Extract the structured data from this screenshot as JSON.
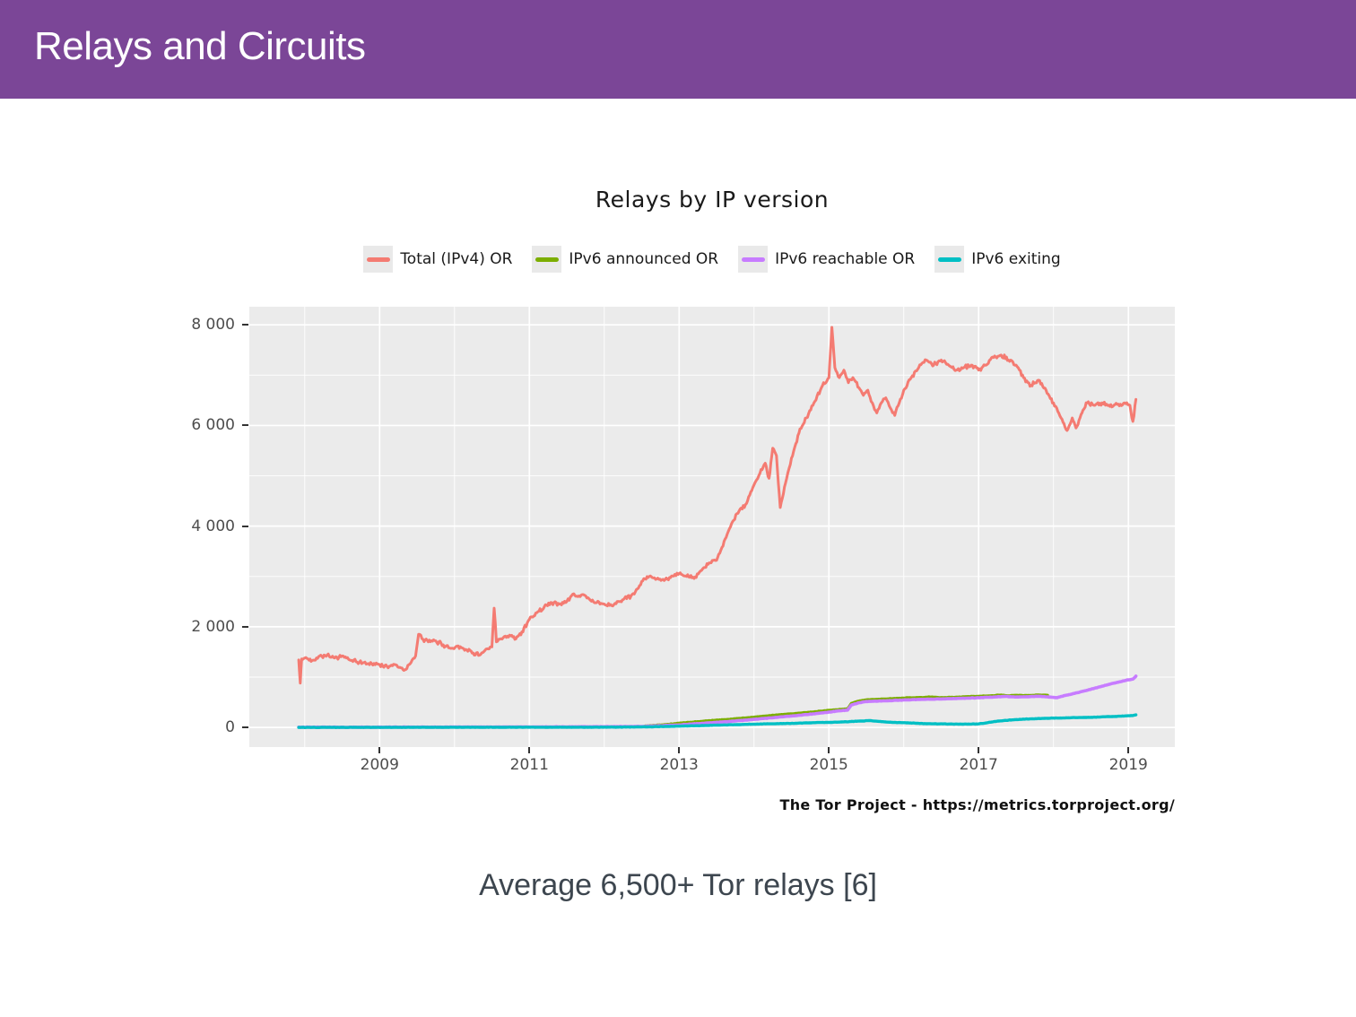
{
  "header": {
    "title": "Relays and Circuits"
  },
  "subtitle": "Average 6,500+ Tor relays [6]",
  "chart_data": {
    "type": "line",
    "title": "Relays by IP version",
    "caption": "The Tor Project - https://metrics.torproject.org/",
    "plot_bg": "#EBEBEB",
    "grid": "on",
    "legend_position": "top",
    "xlim": [
      2007.26,
      2019.62
    ],
    "ylim": [
      -390,
      8360
    ],
    "y_ticks": [
      {
        "label": "0",
        "value": 0
      },
      {
        "label": "2 000",
        "value": 2000
      },
      {
        "label": "4 000",
        "value": 4000
      },
      {
        "label": "6 000",
        "value": 6000
      },
      {
        "label": "8 000",
        "value": 8000
      }
    ],
    "y_minor": [
      1000,
      3000,
      5000,
      7000
    ],
    "x_ticks": [
      {
        "label": "2009",
        "value": 2009
      },
      {
        "label": "2011",
        "value": 2011
      },
      {
        "label": "2013",
        "value": 2013
      },
      {
        "label": "2015",
        "value": 2015
      },
      {
        "label": "2017",
        "value": 2017
      },
      {
        "label": "2019",
        "value": 2019
      }
    ],
    "x_minor": [
      2008,
      2010,
      2012,
      2014,
      2016,
      2018
    ],
    "series": [
      {
        "name": "Total (IPv4) OR",
        "color": "#F47B72",
        "width": 3.0,
        "noise": 48,
        "points": [
          [
            2007.92,
            1340
          ],
          [
            2007.94,
            880
          ],
          [
            2007.96,
            1360
          ],
          [
            2008.0,
            1380
          ],
          [
            2008.1,
            1330
          ],
          [
            2008.2,
            1420
          ],
          [
            2008.3,
            1440
          ],
          [
            2008.4,
            1380
          ],
          [
            2008.5,
            1420
          ],
          [
            2008.6,
            1340
          ],
          [
            2008.7,
            1300
          ],
          [
            2008.85,
            1270
          ],
          [
            2009.0,
            1250
          ],
          [
            2009.1,
            1210
          ],
          [
            2009.2,
            1250
          ],
          [
            2009.3,
            1180
          ],
          [
            2009.35,
            1150
          ],
          [
            2009.42,
            1290
          ],
          [
            2009.48,
            1420
          ],
          [
            2009.52,
            1850
          ],
          [
            2009.58,
            1750
          ],
          [
            2009.65,
            1700
          ],
          [
            2009.75,
            1720
          ],
          [
            2009.85,
            1640
          ],
          [
            2009.95,
            1570
          ],
          [
            2010.05,
            1620
          ],
          [
            2010.15,
            1550
          ],
          [
            2010.25,
            1480
          ],
          [
            2010.35,
            1450
          ],
          [
            2010.45,
            1560
          ],
          [
            2010.5,
            1600
          ],
          [
            2010.53,
            2370
          ],
          [
            2010.56,
            1700
          ],
          [
            2010.65,
            1780
          ],
          [
            2010.75,
            1820
          ],
          [
            2010.82,
            1760
          ],
          [
            2010.9,
            1900
          ],
          [
            2011.0,
            2150
          ],
          [
            2011.1,
            2280
          ],
          [
            2011.2,
            2400
          ],
          [
            2011.3,
            2480
          ],
          [
            2011.4,
            2450
          ],
          [
            2011.5,
            2500
          ],
          [
            2011.58,
            2650
          ],
          [
            2011.65,
            2600
          ],
          [
            2011.72,
            2640
          ],
          [
            2011.8,
            2550
          ],
          [
            2011.9,
            2480
          ],
          [
            2012.0,
            2450
          ],
          [
            2012.1,
            2420
          ],
          [
            2012.2,
            2500
          ],
          [
            2012.3,
            2560
          ],
          [
            2012.4,
            2650
          ],
          [
            2012.5,
            2900
          ],
          [
            2012.6,
            3000
          ],
          [
            2012.7,
            2950
          ],
          [
            2012.8,
            2920
          ],
          [
            2012.9,
            3010
          ],
          [
            2013.0,
            3060
          ],
          [
            2013.1,
            3000
          ],
          [
            2013.2,
            2960
          ],
          [
            2013.3,
            3120
          ],
          [
            2013.4,
            3270
          ],
          [
            2013.5,
            3320
          ],
          [
            2013.6,
            3700
          ],
          [
            2013.7,
            4050
          ],
          [
            2013.8,
            4300
          ],
          [
            2013.9,
            4450
          ],
          [
            2014.0,
            4820
          ],
          [
            2014.08,
            5050
          ],
          [
            2014.15,
            5250
          ],
          [
            2014.2,
            4950
          ],
          [
            2014.25,
            5550
          ],
          [
            2014.3,
            5400
          ],
          [
            2014.35,
            4370
          ],
          [
            2014.42,
            4850
          ],
          [
            2014.5,
            5350
          ],
          [
            2014.6,
            5850
          ],
          [
            2014.7,
            6150
          ],
          [
            2014.8,
            6450
          ],
          [
            2014.9,
            6750
          ],
          [
            2015.0,
            6950
          ],
          [
            2015.04,
            7950
          ],
          [
            2015.08,
            7150
          ],
          [
            2015.14,
            6950
          ],
          [
            2015.2,
            7100
          ],
          [
            2015.26,
            6850
          ],
          [
            2015.32,
            6950
          ],
          [
            2015.4,
            6750
          ],
          [
            2015.46,
            6600
          ],
          [
            2015.52,
            6700
          ],
          [
            2015.58,
            6450
          ],
          [
            2015.64,
            6250
          ],
          [
            2015.7,
            6450
          ],
          [
            2015.76,
            6550
          ],
          [
            2015.82,
            6350
          ],
          [
            2015.88,
            6200
          ],
          [
            2015.94,
            6450
          ],
          [
            2016.0,
            6700
          ],
          [
            2016.1,
            6950
          ],
          [
            2016.2,
            7150
          ],
          [
            2016.3,
            7300
          ],
          [
            2016.4,
            7200
          ],
          [
            2016.5,
            7300
          ],
          [
            2016.6,
            7200
          ],
          [
            2016.7,
            7100
          ],
          [
            2016.8,
            7150
          ],
          [
            2016.9,
            7200
          ],
          [
            2017.0,
            7100
          ],
          [
            2017.1,
            7200
          ],
          [
            2017.2,
            7350
          ],
          [
            2017.3,
            7400
          ],
          [
            2017.4,
            7300
          ],
          [
            2017.5,
            7200
          ],
          [
            2017.6,
            6950
          ],
          [
            2017.7,
            6800
          ],
          [
            2017.8,
            6900
          ],
          [
            2017.9,
            6700
          ],
          [
            2018.0,
            6450
          ],
          [
            2018.1,
            6150
          ],
          [
            2018.18,
            5900
          ],
          [
            2018.25,
            6150
          ],
          [
            2018.3,
            5950
          ],
          [
            2018.38,
            6250
          ],
          [
            2018.45,
            6450
          ],
          [
            2018.55,
            6400
          ],
          [
            2018.65,
            6450
          ],
          [
            2018.75,
            6380
          ],
          [
            2018.85,
            6420
          ],
          [
            2018.95,
            6450
          ],
          [
            2019.02,
            6400
          ],
          [
            2019.06,
            6080
          ],
          [
            2019.1,
            6520
          ]
        ]
      },
      {
        "name": "IPv6 announced OR",
        "color": "#7CAE00",
        "width": 3.2,
        "noise": 5,
        "points": [
          [
            2012.55,
            30
          ],
          [
            2012.8,
            55
          ],
          [
            2013.0,
            85
          ],
          [
            2013.2,
            110
          ],
          [
            2013.4,
            135
          ],
          [
            2013.6,
            155
          ],
          [
            2013.8,
            180
          ],
          [
            2014.0,
            205
          ],
          [
            2014.2,
            235
          ],
          [
            2014.4,
            260
          ],
          [
            2014.6,
            285
          ],
          [
            2014.8,
            310
          ],
          [
            2015.0,
            340
          ],
          [
            2015.15,
            360
          ],
          [
            2015.25,
            370
          ],
          [
            2015.3,
            480
          ],
          [
            2015.4,
            525
          ],
          [
            2015.5,
            550
          ],
          [
            2015.65,
            560
          ],
          [
            2015.8,
            570
          ],
          [
            2016.0,
            585
          ],
          [
            2016.2,
            595
          ],
          [
            2016.35,
            605
          ],
          [
            2016.5,
            595
          ],
          [
            2016.65,
            600
          ],
          [
            2016.8,
            610
          ],
          [
            2017.0,
            620
          ],
          [
            2017.15,
            630
          ],
          [
            2017.3,
            645
          ],
          [
            2017.4,
            630
          ],
          [
            2017.5,
            640
          ],
          [
            2017.65,
            635
          ],
          [
            2017.8,
            645
          ],
          [
            2017.92,
            640
          ]
        ]
      },
      {
        "name": "IPv6 reachable OR",
        "color": "#C77CFF",
        "width": 3.6,
        "noise": 5,
        "points": [
          [
            2007.92,
            5
          ],
          [
            2009.0,
            5
          ],
          [
            2010.0,
            8
          ],
          [
            2011.0,
            10
          ],
          [
            2012.0,
            15
          ],
          [
            2012.5,
            20
          ],
          [
            2013.0,
            50
          ],
          [
            2013.3,
            80
          ],
          [
            2013.6,
            110
          ],
          [
            2014.0,
            160
          ],
          [
            2014.3,
            200
          ],
          [
            2014.6,
            240
          ],
          [
            2014.8,
            270
          ],
          [
            2015.0,
            305
          ],
          [
            2015.15,
            330
          ],
          [
            2015.25,
            345
          ],
          [
            2015.3,
            445
          ],
          [
            2015.4,
            490
          ],
          [
            2015.5,
            515
          ],
          [
            2015.7,
            525
          ],
          [
            2016.0,
            545
          ],
          [
            2016.3,
            560
          ],
          [
            2016.6,
            570
          ],
          [
            2016.8,
            580
          ],
          [
            2017.0,
            590
          ],
          [
            2017.2,
            605
          ],
          [
            2017.35,
            615
          ],
          [
            2017.5,
            605
          ],
          [
            2017.65,
            610
          ],
          [
            2017.8,
            620
          ],
          [
            2017.95,
            605
          ],
          [
            2018.05,
            590
          ],
          [
            2018.15,
            635
          ],
          [
            2018.25,
            665
          ],
          [
            2018.4,
            720
          ],
          [
            2018.55,
            780
          ],
          [
            2018.7,
            840
          ],
          [
            2018.85,
            895
          ],
          [
            2019.0,
            945
          ],
          [
            2019.06,
            960
          ],
          [
            2019.1,
            1020
          ]
        ]
      },
      {
        "name": "IPv6 exiting",
        "color": "#00BFC4",
        "width": 3.4,
        "noise": 4,
        "points": [
          [
            2007.92,
            0
          ],
          [
            2012.0,
            5
          ],
          [
            2012.5,
            10
          ],
          [
            2013.0,
            25
          ],
          [
            2013.5,
            45
          ],
          [
            2014.0,
            65
          ],
          [
            2014.5,
            80
          ],
          [
            2014.8,
            95
          ],
          [
            2015.0,
            100
          ],
          [
            2015.2,
            110
          ],
          [
            2015.4,
            125
          ],
          [
            2015.55,
            135
          ],
          [
            2015.7,
            115
          ],
          [
            2015.85,
            100
          ],
          [
            2016.0,
            95
          ],
          [
            2016.2,
            80
          ],
          [
            2016.4,
            72
          ],
          [
            2016.6,
            68
          ],
          [
            2016.8,
            65
          ],
          [
            2017.0,
            70
          ],
          [
            2017.1,
            90
          ],
          [
            2017.25,
            125
          ],
          [
            2017.4,
            145
          ],
          [
            2017.55,
            160
          ],
          [
            2017.7,
            170
          ],
          [
            2017.85,
            178
          ],
          [
            2018.0,
            185
          ],
          [
            2018.2,
            192
          ],
          [
            2018.4,
            198
          ],
          [
            2018.6,
            206
          ],
          [
            2018.8,
            218
          ],
          [
            2018.95,
            228
          ],
          [
            2019.05,
            235
          ],
          [
            2019.1,
            250
          ]
        ]
      }
    ]
  }
}
